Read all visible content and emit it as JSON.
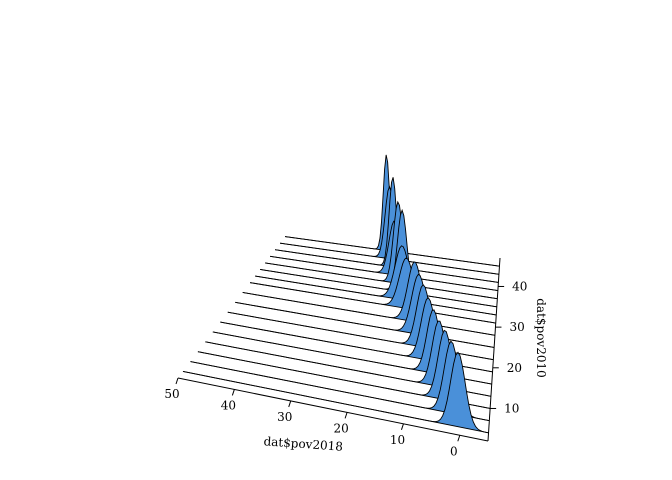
{
  "chart_data": {
    "type": "area",
    "subtype": "3d-ridgeline-density",
    "xlabel": "dat$pov2018",
    "ylabel": "dat$pov2010",
    "x_ticks": [
      "50",
      "40",
      "30",
      "20",
      "10",
      "0"
    ],
    "y_ticks": [
      "10",
      "20",
      "30",
      "40"
    ],
    "xlim": [
      -5,
      50
    ],
    "ylim": [
      2,
      47
    ],
    "fill_color": "#4a90d9",
    "panel_color": "#ffffff",
    "line_color": "#000000",
    "series": [
      {
        "y": 4,
        "peak_x": 0.5,
        "height": 0.62,
        "sd": 1.3
      },
      {
        "y": 7,
        "peak_x": 2.0,
        "height": 0.6,
        "sd": 1.3
      },
      {
        "y": 10,
        "peak_x": 3.5,
        "height": 0.58,
        "sd": 1.3
      },
      {
        "y": 13,
        "peak_x": 5.0,
        "height": 0.55,
        "sd": 1.3
      },
      {
        "y": 16,
        "peak_x": 6.5,
        "height": 0.53,
        "sd": 1.3
      },
      {
        "y": 19,
        "peak_x": 8.0,
        "height": 0.52,
        "sd": 1.4
      },
      {
        "y": 22,
        "peak_x": 9.5,
        "height": 0.52,
        "sd": 1.4
      },
      {
        "y": 25,
        "peak_x": 11.0,
        "height": 0.5,
        "sd": 1.5
      },
      {
        "y": 28,
        "peak_x": 12.5,
        "height": 0.5,
        "sd": 1.5
      },
      {
        "y": 31,
        "peak_x": 15.0,
        "height": 0.42,
        "sd": 1.6
      },
      {
        "y": 33,
        "peak_x": 16.5,
        "height": 0.45,
        "sd": 1.6
      },
      {
        "y": 35,
        "peak_x": 17.0,
        "height": 0.68,
        "sd": 1.1
      },
      {
        "y": 37,
        "peak_x": 18.5,
        "height": 0.68,
        "sd": 1.1
      },
      {
        "y": 39,
        "peak_x": 20.0,
        "height": 0.45,
        "sd": 1.3
      },
      {
        "y": 41,
        "peak_x": 21.0,
        "height": 0.75,
        "sd": 0.9
      },
      {
        "y": 43,
        "peak_x": 22.5,
        "height": 0.6,
        "sd": 1.1
      },
      {
        "y": 45,
        "peak_x": 24.0,
        "height": 0.8,
        "sd": 0.8
      }
    ]
  }
}
